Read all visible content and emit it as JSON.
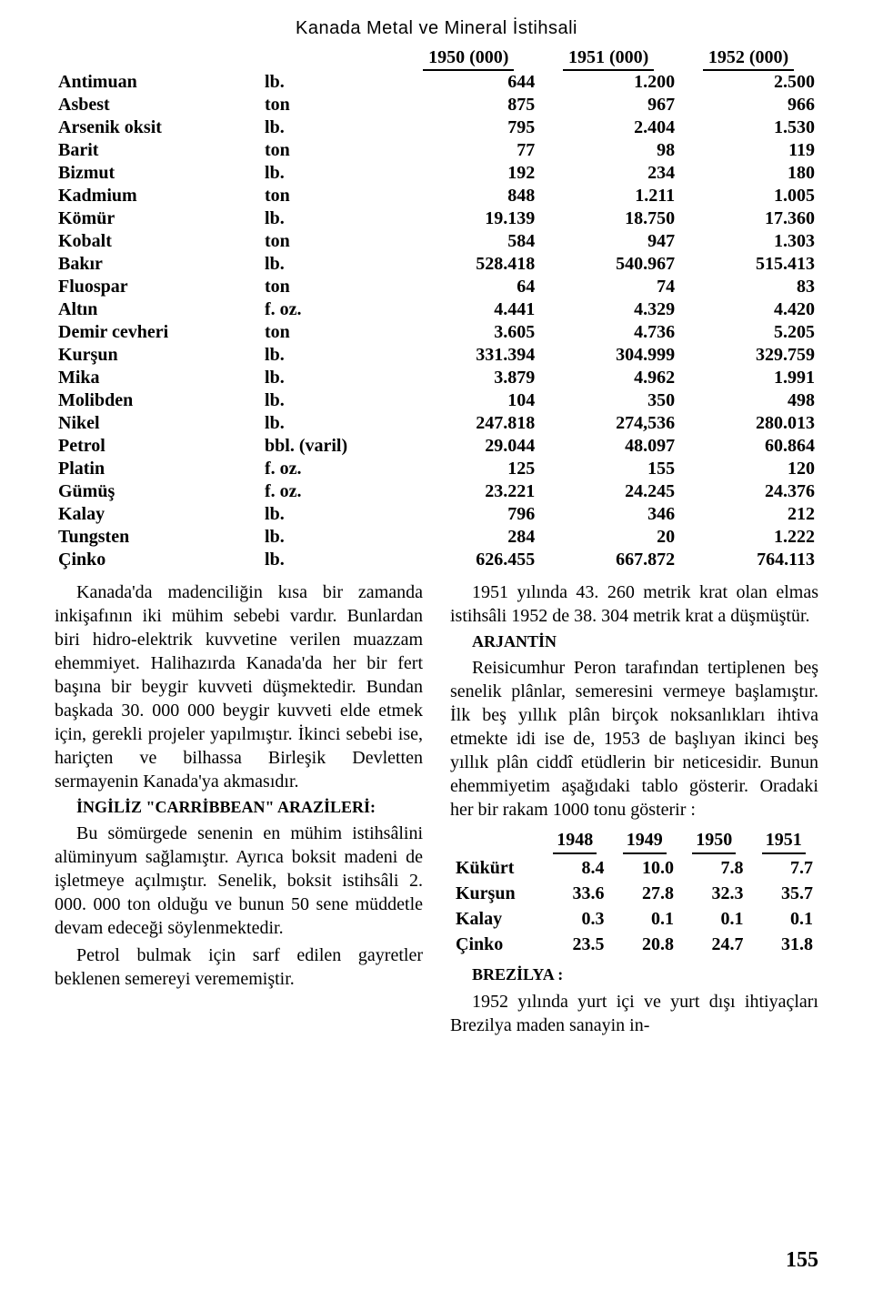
{
  "title": "Kanada Metal ve Mineral İstihsali",
  "main_table": {
    "headers": [
      "1950 (000)",
      "1951 (000)",
      "1952 (000)"
    ],
    "rows": [
      {
        "m": "Antimuan",
        "u": "lb.",
        "a": "644",
        "b": "1.200",
        "c": "2.500"
      },
      {
        "m": "Asbest",
        "u": "ton",
        "a": "875",
        "b": "967",
        "c": "966"
      },
      {
        "m": "Arsenik oksit",
        "u": "lb.",
        "a": "795",
        "b": "2.404",
        "c": "1.530"
      },
      {
        "m": "Barit",
        "u": "ton",
        "a": "77",
        "b": "98",
        "c": "119"
      },
      {
        "m": "Bizmut",
        "u": "lb.",
        "a": "192",
        "b": "234",
        "c": "180"
      },
      {
        "m": "Kadmium",
        "u": "ton",
        "a": "848",
        "b": "1.211",
        "c": "1.005"
      },
      {
        "m": "Kömür",
        "u": "lb.",
        "a": "19.139",
        "b": "18.750",
        "c": "17.360"
      },
      {
        "m": "Kobalt",
        "u": "ton",
        "a": "584",
        "b": "947",
        "c": "1.303"
      },
      {
        "m": "Bakır",
        "u": "lb.",
        "a": "528.418",
        "b": "540.967",
        "c": "515.413"
      },
      {
        "m": "Fluospar",
        "u": "ton",
        "a": "64",
        "b": "74",
        "c": "83"
      },
      {
        "m": "Altın",
        "u": "f. oz.",
        "a": "4.441",
        "b": "4.329",
        "c": "4.420"
      },
      {
        "m": "Demir cevheri",
        "u": "ton",
        "a": "3.605",
        "b": "4.736",
        "c": "5.205"
      },
      {
        "m": "Kurşun",
        "u": "lb.",
        "a": "331.394",
        "b": "304.999",
        "c": "329.759"
      },
      {
        "m": "Mika",
        "u": "lb.",
        "a": "3.879",
        "b": "4.962",
        "c": "1.991"
      },
      {
        "m": "Molibden",
        "u": "lb.",
        "a": "104",
        "b": "350",
        "c": "498"
      },
      {
        "m": "Nikel",
        "u": "lb.",
        "a": "247.818",
        "b": "274,536",
        "c": "280.013"
      },
      {
        "m": "Petrol",
        "u": "bbl. (varil)",
        "a": "29.044",
        "b": "48.097",
        "c": "60.864"
      },
      {
        "m": "Platin",
        "u": "f. oz.",
        "a": "125",
        "b": "155",
        "c": "120"
      },
      {
        "m": "Gümüş",
        "u": "f. oz.",
        "a": "23.221",
        "b": "24.245",
        "c": "24.376"
      },
      {
        "m": "Kalay",
        "u": "lb.",
        "a": "796",
        "b": "346",
        "c": "212"
      },
      {
        "m": "Tungsten",
        "u": "lb.",
        "a": "284",
        "b": "20",
        "c": "1.222"
      },
      {
        "m": "Çinko",
        "u": "lb.",
        "a": "626.455",
        "b": "667.872",
        "c": "764.113"
      }
    ]
  },
  "left": {
    "p1": "Kanada'da madenciliğin kısa bir zamanda inkişafının iki mühim sebebi vardır. Bunlardan biri hidro-elektrik kuvvetine verilen muazzam ehemmiyet. Halihazırda Kanada'da her bir fert başına bir beygir kuvveti düşmektedir. Bundan başkada 30. 000 000 beygir kuvveti elde etmek için, gerekli projeler yapılmıştır. İkinci sebebi ise, hariçten ve bilhassa Birleşik Devletten sermayenin Kanada'ya akmasıdır.",
    "h1": "İNGİLİZ \"CARRİBBEAN\" ARAZİLERİ:",
    "p2": "Bu sömürgede senenin en mühim istihsâlini alüminyum sağlamıştır. Ayrıca boksit madeni de işletmeye açılmıştır. Senelik, boksit istihsâli 2. 000. 000 ton olduğu ve bunun 50 sene müddetle devam edeceği söylenmektedir.",
    "p3": "Petrol bulmak için sarf edilen gayretler beklenen semereyi verememiştir."
  },
  "right": {
    "p1": "1951 yılında 43. 260 metrik krat olan elmas istihsâli 1952 de 38. 304 metrik krat a düşmüştür.",
    "h1": "ARJANTİN",
    "p2": "Reisicumhur Peron tarafından tertiplenen beş senelik plânlar, semeresini vermeye başlamıştır. İlk beş yıllık plân birçok noksanlıkları ihtiva etmekte idi ise de, 1953 de başlıyan ikinci beş yıllık plân ciddî etüdlerin bir neticesidir. Bunun ehemmiyetim aşağıdaki tablo gösterir. Oradaki her bir rakam 1000 tonu gösterir :",
    "arj_table": {
      "headers": [
        "1948",
        "1949",
        "1950",
        "1951"
      ],
      "rows": [
        {
          "n": "Kükürt",
          "a": "8.4",
          "b": "10.0",
          "c": "7.8",
          "d": "7.7"
        },
        {
          "n": "Kurşun",
          "a": "33.6",
          "b": "27.8",
          "c": "32.3",
          "d": "35.7"
        },
        {
          "n": "Kalay",
          "a": "0.3",
          "b": "0.1",
          "c": "0.1",
          "d": "0.1"
        },
        {
          "n": "Çinko",
          "a": "23.5",
          "b": "20.8",
          "c": "24.7",
          "d": "31.8"
        }
      ]
    },
    "h2": "BREZİLYA   :",
    "p3": "1952 yılında yurt içi ve yurt dışı ihtiyaçları Brezilya maden sanayin in-"
  },
  "pagenum": "155"
}
